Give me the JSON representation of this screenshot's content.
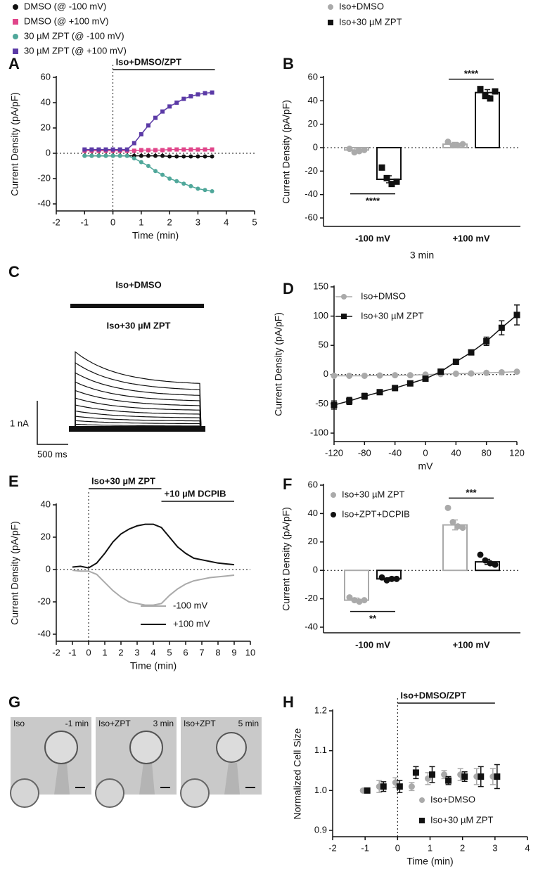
{
  "chart_data": [
    {
      "type": "line",
      "panel_label": "A",
      "y_label": "Current Density (pA/pF)",
      "x_label": "Time (min)",
      "x": [
        -1,
        -0.75,
        -0.5,
        -0.25,
        0,
        0.25,
        0.5,
        0.75,
        1,
        1.25,
        1.5,
        1.75,
        2,
        2.25,
        2.5,
        2.75,
        3,
        3.25,
        3.5
      ],
      "series": [
        {
          "name": "DMSO (@ -100 mV)",
          "color": "#111111",
          "marker": "circle",
          "values": [
            -2,
            -2,
            -2,
            -2,
            -2,
            -2,
            -2,
            -2,
            -2,
            -2,
            -2,
            -2,
            -2.5,
            -2.5,
            -2.5,
            -2.5,
            -2.5,
            -2.5,
            -2.5
          ]
        },
        {
          "name": "DMSO (@ +100 mV)",
          "color": "#e0458a",
          "marker": "square",
          "values": [
            2,
            2,
            2,
            2,
            2,
            2,
            2,
            2,
            2.5,
            2.5,
            2.5,
            2.5,
            3,
            3,
            3,
            3,
            3,
            3,
            3
          ]
        },
        {
          "name": "30 µM ZPT (@ -100 mV)",
          "color": "#4fa79a",
          "marker": "circle",
          "values": [
            -2,
            -2,
            -2,
            -2,
            -2,
            -2,
            -2,
            -4,
            -7,
            -10,
            -14,
            -17,
            -20,
            -22,
            -24,
            -26,
            -28,
            -29,
            -30
          ]
        },
        {
          "name": "30 µM ZPT (@ +100 mV)",
          "color": "#5b3aa6",
          "marker": "square",
          "values": [
            3,
            3,
            3,
            3,
            3,
            3,
            3,
            8,
            15,
            22,
            28,
            33,
            37,
            40,
            43,
            45,
            46.5,
            47.5,
            48
          ]
        }
      ],
      "xlim": [
        -2,
        5
      ],
      "xticks": [
        -2,
        -1,
        0,
        1,
        2,
        3,
        4,
        5
      ],
      "ylim": [
        -40,
        60
      ],
      "yticks": [
        -40,
        -20,
        0,
        20,
        40,
        60
      ],
      "zero_lines": [
        "x",
        "y"
      ],
      "legend": "top",
      "spans": [
        {
          "text": "Iso+DMSO/ZPT",
          "x": [
            0,
            3.6
          ]
        }
      ]
    },
    {
      "type": "bar",
      "panel_label": "B",
      "y_label": "Current Density (pA/pF)",
      "x_label": "3 min",
      "categories": [
        "-100 mV",
        "+100 mV"
      ],
      "series": [
        {
          "name": "Iso+DMSO",
          "color": "#aaaaaa",
          "marker": "circle",
          "values": [
            -2,
            3
          ],
          "errors": [
            1.5,
            1.5
          ],
          "points": [
            [
              -1,
              -4,
              -3,
              -2
            ],
            [
              5,
              2,
              2,
              3
            ]
          ]
        },
        {
          "name": "Iso+30 µM ZPT",
          "color": "#111111",
          "marker": "square",
          "values": [
            -27,
            47
          ],
          "errors": [
            3,
            2.5
          ],
          "points": [
            [
              -17,
              -26,
              -31,
              -29
            ],
            [
              50,
              44,
              42,
              48
            ]
          ]
        }
      ],
      "ylim": [
        -60,
        60
      ],
      "yticks": [
        -60,
        -40,
        -20,
        0,
        20,
        40,
        60
      ],
      "zero_lines": [
        "y"
      ],
      "legend": "top",
      "significance": [
        "****",
        "****"
      ]
    },
    {
      "type": "traces",
      "panel_label": "C",
      "labels": [
        "Iso+DMSO",
        "Iso+30 µM ZPT"
      ],
      "scale_labels": [
        "1 nA",
        "500 ms"
      ]
    },
    {
      "type": "line",
      "panel_label": "D",
      "y_label": "Current Density (pA/pF)",
      "x_label": "mV",
      "x": [
        -120,
        -100,
        -80,
        -60,
        -40,
        -20,
        0,
        20,
        40,
        60,
        80,
        100,
        120
      ],
      "series": [
        {
          "name": "Iso+DMSO",
          "color": "#aaaaaa",
          "marker": "circle",
          "values": [
            -2,
            -2,
            -2,
            -1.5,
            -1,
            -1,
            0,
            1,
            1.5,
            2,
            3,
            4,
            5
          ]
        },
        {
          "name": "Iso+30 µM ZPT",
          "color": "#111111",
          "marker": "square",
          "values": [
            -52,
            -45,
            -37,
            -30,
            -23,
            -15,
            -7,
            5,
            22,
            38,
            57,
            80,
            102
          ],
          "errors": [
            7,
            6,
            5,
            4,
            3,
            3,
            3,
            3,
            3,
            4,
            7,
            12,
            17
          ]
        }
      ],
      "xlim": [
        -120,
        120
      ],
      "xticks": [
        -120,
        -80,
        -40,
        0,
        40,
        80,
        120
      ],
      "ylim": [
        -100,
        150
      ],
      "yticks": [
        -100,
        -50,
        0,
        50,
        100,
        150
      ],
      "zero_lines": [
        "y"
      ],
      "legend": "upper left"
    },
    {
      "type": "line",
      "panel_label": "E",
      "y_label": "Current Density (pA/pF)",
      "x_label": "Time (min)",
      "x": [
        -1,
        -0.5,
        0,
        0.5,
        1,
        1.5,
        2,
        2.5,
        3,
        3.5,
        4,
        4.5,
        5,
        5.5,
        6,
        6.5,
        7,
        7.5,
        8,
        8.5,
        9
      ],
      "series": [
        {
          "name": "-100 mV",
          "color": "#aaaaaa",
          "values": [
            -0.5,
            -1,
            -1,
            -3,
            -8,
            -13,
            -17,
            -20,
            -21,
            -22,
            -22,
            -21,
            -16,
            -12,
            -9,
            -7,
            -6,
            -5,
            -4.5,
            -4,
            -3.5
          ]
        },
        {
          "name": "+100 mV",
          "color": "#111111",
          "values": [
            1.5,
            2,
            1,
            4,
            10,
            17,
            22,
            25,
            27,
            28,
            28,
            26,
            20,
            14,
            10,
            7,
            6,
            5,
            4,
            3.5,
            3
          ]
        }
      ],
      "xlim": [
        -2,
        10
      ],
      "xticks": [
        -2,
        -1,
        0,
        1,
        2,
        3,
        4,
        5,
        6,
        7,
        8,
        9,
        10
      ],
      "ylim": [
        -40,
        40
      ],
      "yticks": [
        -40,
        -20,
        0,
        20,
        40
      ],
      "zero_lines": [
        "x",
        "y"
      ],
      "legend": "lower right",
      "spans": [
        {
          "text": "Iso+30 µM ZPT",
          "x": [
            0,
            4.5
          ]
        },
        {
          "text": "+10 µM DCPIB",
          "x": [
            4.5,
            9
          ]
        }
      ]
    },
    {
      "type": "bar",
      "panel_label": "F",
      "y_label": "Current Density (pA/pF)",
      "categories": [
        "-100 mV",
        "+100 mV"
      ],
      "series": [
        {
          "name": "Iso+30 µM ZPT",
          "color": "#aaaaaa",
          "marker": "circle",
          "values": [
            -21,
            32
          ],
          "errors": [
            1.5,
            3.5
          ],
          "points": [
            [
              -19,
              -21,
              -22,
              -21
            ],
            [
              44,
              34,
              31,
              30
            ]
          ]
        },
        {
          "name": "Iso+ZPT+DCPIB",
          "color": "#111111",
          "marker": "circle",
          "values": [
            -6,
            6
          ],
          "errors": [
            0.8,
            1.8
          ],
          "points": [
            [
              -5,
              -7,
              -6,
              -6
            ],
            [
              11,
              7,
              5,
              4
            ]
          ]
        }
      ],
      "ylim": [
        -40,
        60
      ],
      "yticks": [
        -40,
        -20,
        0,
        20,
        40,
        60
      ],
      "zero_lines": [
        "y"
      ],
      "legend": "upper left",
      "significance": [
        "**",
        "***"
      ]
    },
    {
      "type": "images",
      "panel_label": "G",
      "images": [
        {
          "labels": [
            "Iso",
            "-1 min"
          ]
        },
        {
          "labels": [
            "Iso+ZPT",
            "3 min"
          ]
        },
        {
          "labels": [
            "Iso+ZPT",
            "5 min"
          ]
        }
      ]
    },
    {
      "type": "scatter",
      "panel_label": "H",
      "y_label": "Normalized Cell Size",
      "x_label": "Time (min)",
      "x": [
        -1,
        -0.5,
        0,
        0.5,
        1,
        1.5,
        2,
        2.5,
        3
      ],
      "series": [
        {
          "name": "Iso+DMSO",
          "color": "#aaaaaa",
          "marker": "circle",
          "values": [
            1,
            1.01,
            1.02,
            1.01,
            1.03,
            1.04,
            1.04,
            1.035,
            1.035
          ],
          "errors": [
            0.003,
            0.015,
            0.012,
            0.01,
            0.015,
            0.01,
            0.015,
            0.02,
            0.02
          ]
        },
        {
          "name": "Iso+30 µM ZPT",
          "color": "#111111",
          "marker": "square",
          "values": [
            1,
            1.01,
            1.01,
            1.045,
            1.04,
            1.025,
            1.035,
            1.035,
            1.035
          ],
          "errors": [
            0.003,
            0.012,
            0.015,
            0.015,
            0.02,
            0.01,
            0.012,
            0.025,
            0.03
          ]
        }
      ],
      "xlim": [
        -2,
        4
      ],
      "xticks": [
        -2,
        -1,
        0,
        1,
        2,
        3,
        4
      ],
      "ylim": [
        0.9,
        1.2
      ],
      "yticks": [
        0.9,
        {
          "value": 1,
          "label": "1.0"
        },
        1.1,
        1.2
      ],
      "zero_lines": [
        "x"
      ],
      "legend": "lower right",
      "spans": [
        {
          "text": "Iso+DMSO/ZPT",
          "x": [
            0,
            3
          ]
        }
      ]
    }
  ]
}
